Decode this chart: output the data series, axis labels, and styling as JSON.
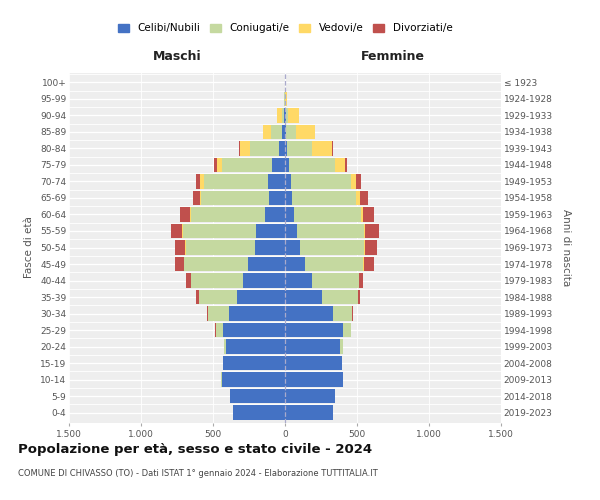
{
  "age_groups": [
    "0-4",
    "5-9",
    "10-14",
    "15-19",
    "20-24",
    "25-29",
    "30-34",
    "35-39",
    "40-44",
    "45-49",
    "50-54",
    "55-59",
    "60-64",
    "65-69",
    "70-74",
    "75-79",
    "80-84",
    "85-89",
    "90-94",
    "95-99",
    "100+"
  ],
  "birth_years": [
    "2019-2023",
    "2014-2018",
    "2009-2013",
    "2004-2008",
    "1999-2003",
    "1994-1998",
    "1989-1993",
    "1984-1988",
    "1979-1983",
    "1974-1978",
    "1969-1973",
    "1964-1968",
    "1959-1963",
    "1954-1958",
    "1949-1953",
    "1944-1948",
    "1939-1943",
    "1934-1938",
    "1929-1933",
    "1924-1928",
    "≤ 1923"
  ],
  "colors": {
    "celibe": "#4472C4",
    "coniugato": "#c5d9a0",
    "vedovo": "#FFD966",
    "divorziato": "#C0504D"
  },
  "maschi_celibe": [
    360,
    380,
    440,
    430,
    410,
    430,
    390,
    330,
    290,
    260,
    210,
    200,
    140,
    110,
    115,
    90,
    40,
    18,
    5,
    2,
    2
  ],
  "maschi_coniugato": [
    0,
    0,
    1,
    3,
    15,
    50,
    145,
    270,
    360,
    440,
    480,
    510,
    510,
    470,
    450,
    350,
    200,
    80,
    15,
    2,
    0
  ],
  "maschi_vedovo": [
    0,
    0,
    0,
    0,
    0,
    0,
    0,
    0,
    1,
    2,
    4,
    4,
    8,
    12,
    25,
    35,
    70,
    55,
    35,
    4,
    0
  ],
  "maschi_divorziato": [
    0,
    0,
    0,
    0,
    0,
    3,
    8,
    15,
    35,
    60,
    70,
    80,
    70,
    45,
    25,
    18,
    8,
    3,
    1,
    0,
    0
  ],
  "femmine_nubile": [
    335,
    350,
    400,
    395,
    385,
    405,
    330,
    260,
    190,
    140,
    105,
    85,
    60,
    50,
    40,
    25,
    15,
    8,
    4,
    2,
    2
  ],
  "femmine_coniugata": [
    0,
    0,
    1,
    3,
    15,
    50,
    135,
    245,
    325,
    405,
    445,
    465,
    465,
    445,
    415,
    320,
    175,
    70,
    15,
    1,
    0
  ],
  "femmine_vedova": [
    0,
    0,
    0,
    0,
    0,
    0,
    0,
    1,
    1,
    4,
    6,
    8,
    15,
    25,
    40,
    70,
    135,
    130,
    80,
    12,
    0
  ],
  "femmine_divorziata": [
    0,
    0,
    0,
    0,
    0,
    3,
    8,
    15,
    25,
    70,
    80,
    95,
    80,
    55,
    35,
    18,
    8,
    3,
    1,
    0,
    0
  ],
  "xlim": 1500,
  "title": "Popolazione per età, sesso e stato civile - 2024",
  "subtitle": "COMUNE DI CHIVASSO (TO) - Dati ISTAT 1° gennaio 2024 - Elaborazione TUTTITALIA.IT",
  "ylabel_left": "Fasce di età",
  "ylabel_right": "Anni di nascita",
  "label_maschi": "Maschi",
  "label_femmine": "Femmine",
  "legend_labels": [
    "Celibi/Nubili",
    "Coniugati/e",
    "Vedovi/e",
    "Divorziati/e"
  ]
}
